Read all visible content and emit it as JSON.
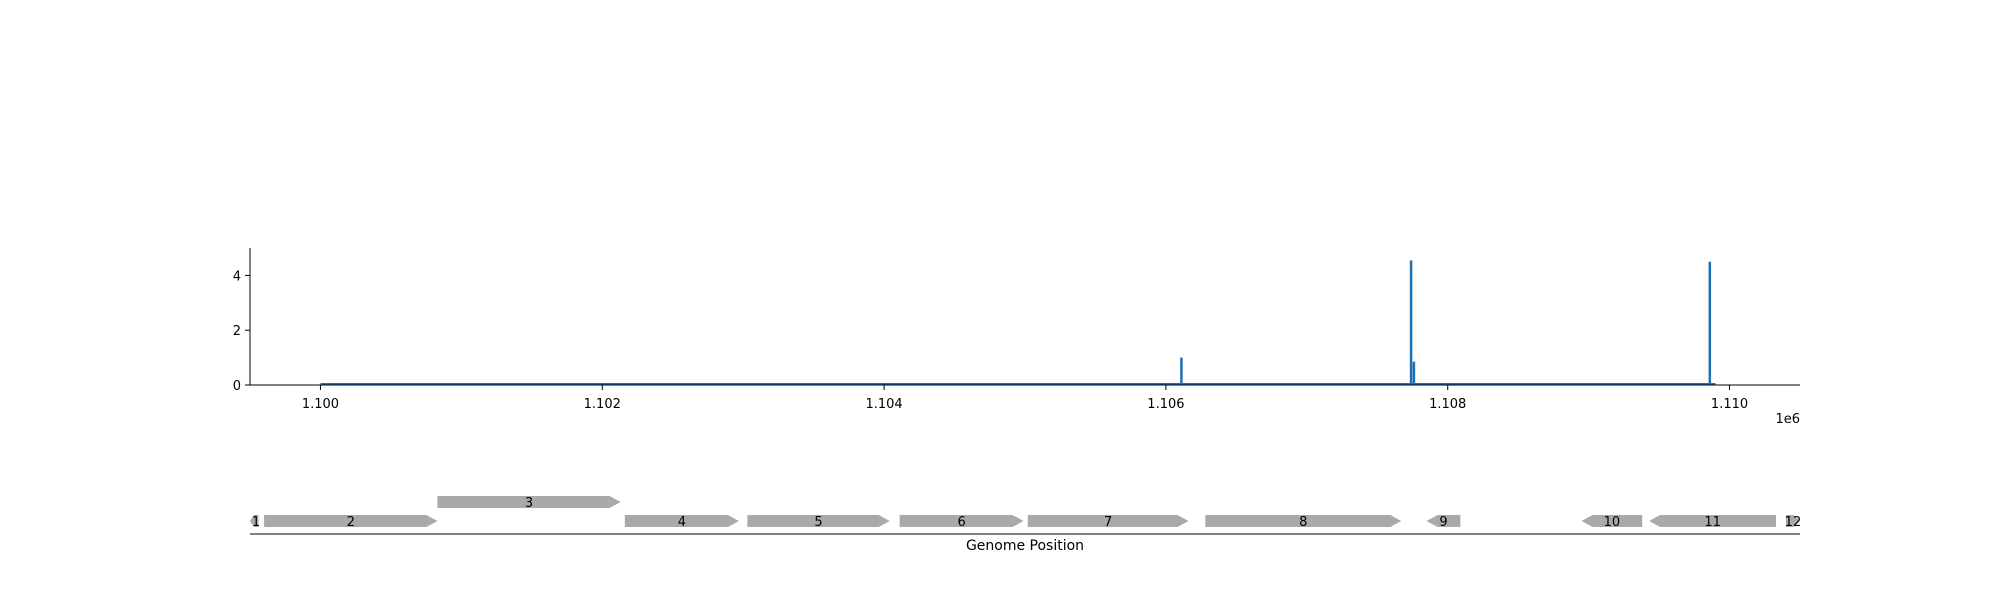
{
  "chart_data": [
    {
      "type": "line",
      "x_axis": {
        "ticks": [
          1100000,
          1102000,
          1104000,
          1106000,
          1108000,
          1110000
        ],
        "tick_labels": [
          "1.100",
          "1.102",
          "1.104",
          "1.106",
          "1.108",
          "1.110"
        ],
        "offset_label": "1e6",
        "xlim": [
          1099500,
          1110500
        ]
      },
      "y_axis": {
        "ticks": [
          0,
          2,
          4
        ],
        "tick_labels": [
          "0",
          "2",
          "4"
        ],
        "ylim": [
          0,
          5
        ]
      },
      "series": [
        {
          "color": "#1f6fb4",
          "baseline": 0,
          "x_range": [
            1100000,
            1109900
          ],
          "peaks": [
            {
              "x": 1106110,
              "y": 1.0
            },
            {
              "x": 1107740,
              "y": 4.55
            },
            {
              "x": 1107760,
              "y": 0.85
            },
            {
              "x": 1109860,
              "y": 4.5
            }
          ]
        }
      ],
      "grid": false
    },
    {
      "type": "gene-track",
      "xlabel": "Genome Position",
      "feature_color": "#a9a9a9",
      "features": [
        {
          "label": "1",
          "start": 1099500,
          "end": 1099560,
          "strand": "-",
          "row": 0
        },
        {
          "label": "2",
          "start": 1099600,
          "end": 1100830,
          "strand": "+",
          "row": 0
        },
        {
          "label": "3",
          "start": 1100830,
          "end": 1102130,
          "strand": "+",
          "row": 1
        },
        {
          "label": "4",
          "start": 1102160,
          "end": 1102970,
          "strand": "+",
          "row": 0
        },
        {
          "label": "5",
          "start": 1103030,
          "end": 1104040,
          "strand": "+",
          "row": 0
        },
        {
          "label": "6",
          "start": 1104110,
          "end": 1104990,
          "strand": "+",
          "row": 0
        },
        {
          "label": "7",
          "start": 1105020,
          "end": 1106160,
          "strand": "+",
          "row": 0
        },
        {
          "label": "8",
          "start": 1106280,
          "end": 1107670,
          "strand": "+",
          "row": 0
        },
        {
          "label": "9",
          "start": 1107850,
          "end": 1108090,
          "strand": "-",
          "row": 0
        },
        {
          "label": "10",
          "start": 1108950,
          "end": 1109380,
          "strand": "-",
          "row": 0
        },
        {
          "label": "11",
          "start": 1109430,
          "end": 1110330,
          "strand": "-",
          "row": 0
        },
        {
          "label": "12",
          "start": 1110400,
          "end": 1110500,
          "strand": "+",
          "row": 0
        }
      ]
    }
  ]
}
